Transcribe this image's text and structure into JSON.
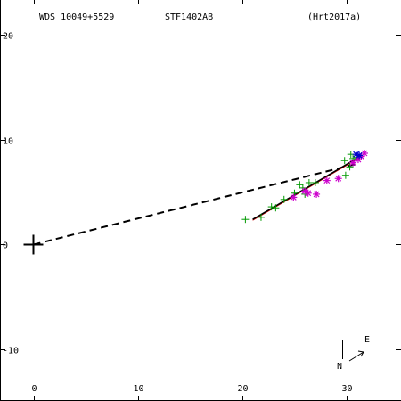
{
  "header": {
    "wds_id": "WDS 10049+5529",
    "pair_name": "STF1402AB",
    "reference": "(Hrt2017a)"
  },
  "compass": {
    "east_label": "E",
    "north_label": "N"
  },
  "colors": {
    "axis": "#000000",
    "primary_marker": "#000000",
    "orbit_line": "#000000",
    "orbit_fit": "#cc0000",
    "obs_plus": "#009900",
    "obs_star": "#cc00cc",
    "obs_recent": "#0000cc"
  },
  "chart_data": {
    "type": "scatter",
    "title": "",
    "xlabel": "",
    "ylabel": "",
    "xlim": [
      -3.2,
      35.2
    ],
    "ylim": [
      -14.9,
      23.3
    ],
    "x_ticks": [
      0,
      10,
      20,
      30
    ],
    "y_ticks": [
      -10,
      0,
      10,
      20
    ],
    "x_tick_labels": [
      "0",
      "10",
      "20",
      "30"
    ],
    "y_tick_labels": [
      "-10",
      "0",
      "10",
      "20"
    ],
    "grid": false,
    "primary": {
      "x": 0,
      "y": 0,
      "marker": "large-plus"
    },
    "dashed_line": {
      "from": [
        0,
        0
      ],
      "to": [
        31.0,
        7.7
      ]
    },
    "orbit_fit": {
      "from": [
        21.0,
        2.4
      ],
      "to": [
        31.3,
        8.4
      ]
    },
    "series": [
      {
        "marker": "plus",
        "points": [
          [
            20.3,
            2.4
          ],
          [
            21.8,
            2.6
          ],
          [
            22.8,
            3.6
          ],
          [
            23.2,
            3.5
          ],
          [
            24.0,
            4.3
          ],
          [
            25.0,
            4.9
          ],
          [
            25.5,
            5.7
          ],
          [
            25.8,
            5.4
          ],
          [
            26.0,
            4.8
          ],
          [
            26.4,
            5.9
          ],
          [
            27.0,
            5.9
          ],
          [
            29.8,
            8.0
          ],
          [
            29.9,
            6.6
          ],
          [
            30.3,
            7.4
          ],
          [
            30.4,
            8.6
          ],
          [
            30.6,
            8.2
          ],
          [
            31.0,
            8.3
          ]
        ]
      },
      {
        "marker": "star",
        "points": [
          [
            24.9,
            4.5
          ],
          [
            26.0,
            5.1
          ],
          [
            26.3,
            4.9
          ],
          [
            27.1,
            4.8
          ],
          [
            28.1,
            6.1
          ],
          [
            29.2,
            6.3
          ],
          [
            30.6,
            7.8
          ],
          [
            31.1,
            8.1
          ],
          [
            31.4,
            8.4
          ],
          [
            31.7,
            8.7
          ]
        ]
      },
      {
        "marker": "star",
        "points": [
          [
            30.9,
            8.6
          ],
          [
            31.2,
            8.5
          ]
        ]
      }
    ]
  }
}
